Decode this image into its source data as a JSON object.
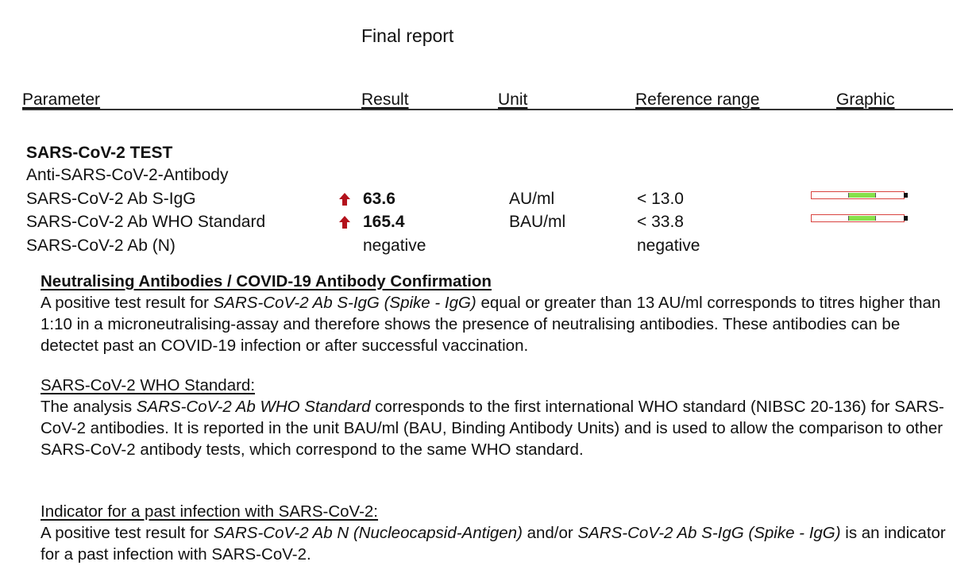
{
  "report": {
    "title": "Final report"
  },
  "columns": {
    "parameter": "Parameter",
    "result": "Result",
    "unit": "Unit",
    "reference": "Reference range",
    "graphic": "Graphic"
  },
  "test": {
    "group_title": "SARS-CoV-2 TEST",
    "subgroup": "Anti-SARS-CoV-2-Antibody",
    "rows": [
      {
        "parameter": "SARS-CoV-2 Ab S-IgG",
        "flag": "high-arrow-icon",
        "result": "63.6",
        "unit": "AU/ml",
        "reference": "< 13.0",
        "graphic": true
      },
      {
        "parameter": "SARS-CoV-2 Ab WHO Standard",
        "flag": "high-arrow-icon",
        "result": "165.4",
        "unit": "BAU/ml",
        "reference": "< 33.8",
        "graphic": true
      },
      {
        "parameter": "SARS-CoV-2 Ab (N)",
        "flag": "",
        "result": "negative",
        "unit": "",
        "reference": "negative",
        "graphic": false
      }
    ]
  },
  "colors": {
    "flag_arrow": "#b3121c",
    "bar_border": "#d9433f",
    "bar_fill": "#86e04a"
  },
  "sections": {
    "neutralising": {
      "heading": "Neutralising Antibodies / COVID-19 Antibody Confirmation",
      "t1": "A positive test result for ",
      "t2": "SARS-CoV-2 Ab S-IgG (Spike - IgG)",
      "t3": " equal or greater than 13 AU/ml corresponds to titres higher than 1:10 in a microneutralising-assay and therefore shows the presence of neutralising antibodies. These antibodies can be detectet past an COVID-19 infection or after successful vaccination."
    },
    "who": {
      "heading": "SARS-CoV-2 WHO Standard:",
      "t1": "The analysis ",
      "t2": "SARS-CoV-2 Ab WHO Standard",
      "t3": " corresponds to the first international WHO standard (NIBSC 20-136) for SARS-CoV-2 antibodies. It is reported in the unit BAU/ml (BAU, Binding Antibody Units) and is used to allow the comparison to other SARS-CoV-2 antibody tests, which correspond to the same WHO standard."
    },
    "indicator": {
      "heading": "Indicator for a past infection with SARS-CoV-2:",
      "t1": "A positive test result for ",
      "t2": "SARS-CoV-2 Ab N (Nucleocapsid-Antigen)",
      "t3": " and/or ",
      "t4": "SARS-CoV-2 Ab S-IgG (Spike - IgG)",
      "t5": " is an indicator for a past infection with SARS-CoV-2."
    }
  }
}
